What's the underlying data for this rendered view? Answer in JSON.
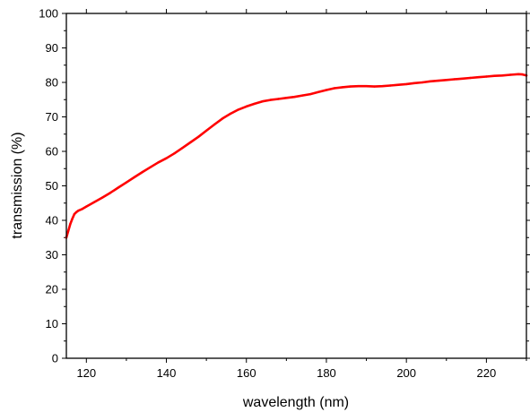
{
  "chart_data": {
    "type": "line",
    "title": "",
    "xlabel": "wavelength (nm)",
    "ylabel": "transmission (%)",
    "xlim": [
      115,
      230
    ],
    "ylim": [
      0,
      100
    ],
    "xticks": [
      120,
      140,
      160,
      180,
      200,
      220
    ],
    "yticks": [
      0,
      10,
      20,
      30,
      40,
      50,
      60,
      70,
      80,
      90,
      100
    ],
    "grid": false,
    "legend": "none",
    "series": [
      {
        "color": "#ff0000",
        "x": [
          115.0,
          115.5,
          116.0,
          116.5,
          117.0,
          117.5,
          118.0,
          119.0,
          120.0,
          122.0,
          124.0,
          126.0,
          128.0,
          130.0,
          132.0,
          134.0,
          136.0,
          138.0,
          140.0,
          142.0,
          144.0,
          146.0,
          148.0,
          150.0,
          152.0,
          154.0,
          156.0,
          158.0,
          160.0,
          162.0,
          164.0,
          166.0,
          168.0,
          170.0,
          172.0,
          174.0,
          176.0,
          178.0,
          180.0,
          182.0,
          184.0,
          186.0,
          188.0,
          190.0,
          192.0,
          194.0,
          196.0,
          198.0,
          200.0,
          202.0,
          204.0,
          206.0,
          208.0,
          210.0,
          212.0,
          214.0,
          216.0,
          218.0,
          220.0,
          222.0,
          224.0,
          226.0,
          228.0,
          229.0,
          230.0
        ],
        "y": [
          35.0,
          37.0,
          39.0,
          40.5,
          41.8,
          42.4,
          42.8,
          43.3,
          44.0,
          45.3,
          46.6,
          48.0,
          49.5,
          51.0,
          52.5,
          54.0,
          55.4,
          56.8,
          58.0,
          59.4,
          61.0,
          62.6,
          64.2,
          66.0,
          67.8,
          69.5,
          70.9,
          72.1,
          73.0,
          73.8,
          74.5,
          74.9,
          75.2,
          75.5,
          75.8,
          76.2,
          76.6,
          77.2,
          77.8,
          78.3,
          78.6,
          78.8,
          78.9,
          78.9,
          78.8,
          78.9,
          79.1,
          79.3,
          79.5,
          79.8,
          80.0,
          80.3,
          80.5,
          80.7,
          80.9,
          81.1,
          81.3,
          81.5,
          81.7,
          81.9,
          82.0,
          82.2,
          82.4,
          82.3,
          82.0
        ]
      }
    ]
  }
}
